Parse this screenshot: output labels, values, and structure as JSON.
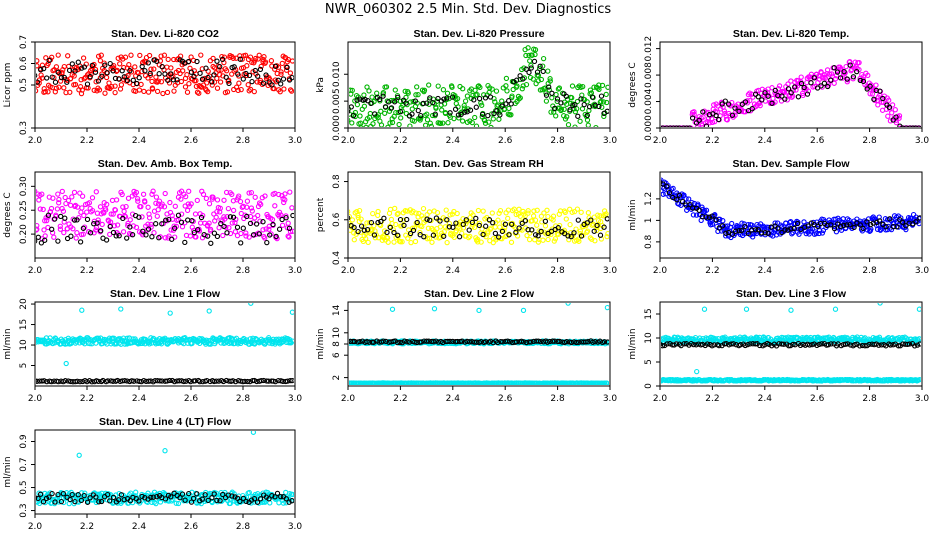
{
  "page_title": "NWR_060302  2.5 Min. Std. Dev. Diagnostics",
  "chart_data": [
    {
      "type": "scatter",
      "title": "Stan. Dev. Li-820 CO2",
      "ylabel": "Licor ppm",
      "xlim": [
        2.0,
        3.0
      ],
      "ylim": [
        0.3,
        0.7
      ],
      "xticks": [
        2.0,
        2.2,
        2.4,
        2.6,
        2.8,
        3.0
      ],
      "yticks": [
        0.3,
        0.5,
        0.6,
        0.7
      ],
      "series": [
        {
          "color": "#ff0000",
          "pattern": "band",
          "base": 0.55,
          "spread": 0.09,
          "n": 330,
          "seed": 11
        },
        {
          "color": "#000000",
          "pattern": "band",
          "base": 0.56,
          "spread": 0.06,
          "n": 90,
          "seed": 12
        }
      ]
    },
    {
      "type": "scatter",
      "title": "Stan. Dev. Li-820 Pressure",
      "ylabel": "kPa",
      "xlim": [
        2.0,
        3.0
      ],
      "ylim": [
        0.0,
        0.016
      ],
      "xticks": [
        2.0,
        2.2,
        2.4,
        2.6,
        2.8,
        3.0
      ],
      "yticks": [
        0.0,
        0.005,
        0.01
      ],
      "yticklabels": [
        "0.000",
        "0.005",
        "0.010"
      ],
      "series": [
        {
          "color": "#00b400",
          "pattern": "pressure",
          "base": 0.004,
          "spread": 0.004,
          "n": 330,
          "seed": 21
        },
        {
          "color": "#000000",
          "pattern": "pressure",
          "base": 0.004,
          "spread": 0.002,
          "n": 90,
          "seed": 22
        }
      ]
    },
    {
      "type": "scatter",
      "title": "Stan. Dev. Li-820 Temp.",
      "ylabel": "degrees C",
      "xlim": [
        2.0,
        3.0
      ],
      "ylim": [
        0.0,
        0.013
      ],
      "xticks": [
        2.0,
        2.2,
        2.4,
        2.6,
        2.8,
        3.0
      ],
      "yticks": [
        0.0,
        0.004,
        0.008,
        0.012
      ],
      "yticklabels": [
        "0.000",
        "0.004",
        "0.008",
        "0.012"
      ],
      "series": [
        {
          "color": "#ff00ff",
          "pattern": "temp",
          "base": 0.0,
          "spread": 0.0,
          "n": 300,
          "seed": 31
        },
        {
          "color": "#000000",
          "pattern": "temp",
          "base": 0.0,
          "spread": 0.0,
          "n": 80,
          "seed": 32
        }
      ]
    },
    {
      "type": "scatter",
      "title": "Stan. Dev. Amb. Box Temp.",
      "ylabel": "degrees C",
      "xlim": [
        2.0,
        3.0
      ],
      "ylim": [
        0.15,
        0.33
      ],
      "xticks": [
        2.0,
        2.2,
        2.4,
        2.6,
        2.8,
        3.0
      ],
      "yticks": [
        0.2,
        0.25,
        0.3
      ],
      "yticklabels": [
        "0.20",
        "0.25",
        "0.30"
      ],
      "series": [
        {
          "color": "#ff00ff",
          "pattern": "band",
          "base": 0.24,
          "spread": 0.05,
          "n": 330,
          "seed": 41
        },
        {
          "color": "#000000",
          "pattern": "band",
          "base": 0.21,
          "spread": 0.03,
          "n": 80,
          "seed": 42
        }
      ]
    },
    {
      "type": "scatter",
      "title": "Stan. Dev. Gas Stream RH",
      "ylabel": "percent",
      "xlim": [
        2.0,
        3.0
      ],
      "ylim": [
        0.4,
        0.85
      ],
      "xticks": [
        2.0,
        2.2,
        2.4,
        2.6,
        2.8,
        3.0
      ],
      "yticks": [
        0.4,
        0.6,
        0.8
      ],
      "series": [
        {
          "color": "#ffff00",
          "pattern": "band",
          "base": 0.57,
          "spread": 0.09,
          "n": 330,
          "seed": 51
        },
        {
          "color": "#000000",
          "pattern": "band",
          "base": 0.56,
          "spread": 0.05,
          "n": 80,
          "seed": 52
        }
      ]
    },
    {
      "type": "scatter",
      "title": "Stan. Dev. Sample Flow",
      "ylabel": "ml/min",
      "xlim": [
        2.0,
        3.0
      ],
      "ylim": [
        0.65,
        1.45
      ],
      "xticks": [
        2.0,
        2.2,
        2.4,
        2.6,
        2.8,
        3.0
      ],
      "yticks": [
        0.8,
        1.0,
        1.2
      ],
      "series": [
        {
          "color": "#0000ff",
          "pattern": "flow",
          "base": 0.9,
          "spread": 0.07,
          "n": 330,
          "seed": 61
        },
        {
          "color": "#000000",
          "pattern": "flow",
          "base": 0.9,
          "spread": 0.04,
          "n": 80,
          "seed": 62
        }
      ]
    },
    {
      "type": "scatter",
      "title": "Stan. Dev. Line 1 Flow",
      "ylabel": "ml/min",
      "xlim": [
        2.0,
        3.0
      ],
      "ylim": [
        0,
        20.5
      ],
      "xticks": [
        2.0,
        2.2,
        2.4,
        2.6,
        2.8,
        3.0
      ],
      "yticks": [
        5,
        10,
        15,
        20
      ],
      "series": [
        {
          "color": "#00e5ee",
          "pattern": "band",
          "base": 11.0,
          "spread": 0.8,
          "n": 330,
          "seed": 71
        },
        {
          "color": "#000000",
          "pattern": "band",
          "base": 1.2,
          "spread": 0.15,
          "n": 110,
          "seed": 72
        }
      ],
      "outliers": [
        {
          "x": 2.18,
          "y": 18.5
        },
        {
          "x": 2.33,
          "y": 18.8
        },
        {
          "x": 2.52,
          "y": 17.8
        },
        {
          "x": 2.67,
          "y": 18.3
        },
        {
          "x": 2.83,
          "y": 20.2
        },
        {
          "x": 2.99,
          "y": 18.0
        },
        {
          "x": 2.12,
          "y": 5.5
        }
      ]
    },
    {
      "type": "scatter",
      "title": "Stan. Dev. Line 2 Flow",
      "ylabel": "ml/min",
      "xlim": [
        2.0,
        3.0
      ],
      "ylim": [
        0.5,
        15.5
      ],
      "xticks": [
        2.0,
        2.2,
        2.4,
        2.6,
        2.8,
        3.0
      ],
      "yticks": [
        2,
        6,
        8,
        10,
        14
      ],
      "series": [
        {
          "color": "#00e5ee",
          "pattern": "band",
          "base": 8.3,
          "spread": 0.25,
          "n": 300,
          "seed": 81
        },
        {
          "color": "#00e5ee",
          "pattern": "band",
          "base": 1.0,
          "spread": 0.05,
          "n": 300,
          "seed": 82
        },
        {
          "color": "#000000",
          "pattern": "band",
          "base": 8.4,
          "spread": 0.15,
          "n": 110,
          "seed": 83
        }
      ],
      "outliers": [
        {
          "x": 2.17,
          "y": 14.2
        },
        {
          "x": 2.33,
          "y": 14.3
        },
        {
          "x": 2.5,
          "y": 14.0
        },
        {
          "x": 2.67,
          "y": 14.0
        },
        {
          "x": 2.84,
          "y": 15.3
        },
        {
          "x": 2.99,
          "y": 14.5
        }
      ]
    },
    {
      "type": "scatter",
      "title": "Stan. Dev. Line 3 Flow",
      "ylabel": "ml/min",
      "xlim": [
        2.0,
        3.0
      ],
      "ylim": [
        0,
        17.5
      ],
      "xticks": [
        2.0,
        2.2,
        2.4,
        2.6,
        2.8,
        3.0
      ],
      "yticks": [
        0,
        5,
        10,
        15
      ],
      "series": [
        {
          "color": "#00e5ee",
          "pattern": "band",
          "base": 9.6,
          "spread": 0.6,
          "n": 330,
          "seed": 91
        },
        {
          "color": "#00e5ee",
          "pattern": "band",
          "base": 1.2,
          "spread": 0.15,
          "n": 300,
          "seed": 92
        },
        {
          "color": "#000000",
          "pattern": "band",
          "base": 8.6,
          "spread": 0.25,
          "n": 110,
          "seed": 93
        }
      ],
      "outliers": [
        {
          "x": 2.17,
          "y": 16.0
        },
        {
          "x": 2.33,
          "y": 16.0
        },
        {
          "x": 2.5,
          "y": 15.8
        },
        {
          "x": 2.67,
          "y": 16.0
        },
        {
          "x": 2.84,
          "y": 17.3
        },
        {
          "x": 2.99,
          "y": 16.0
        },
        {
          "x": 2.14,
          "y": 3.0
        }
      ]
    },
    {
      "type": "scatter",
      "title": "Stan. Dev. Line 4 (LT) Flow",
      "ylabel": "ml/min",
      "xlim": [
        2.0,
        3.0
      ],
      "ylim": [
        0.27,
        1.0
      ],
      "xticks": [
        2.0,
        2.2,
        2.4,
        2.6,
        2.8,
        3.0
      ],
      "yticks": [
        0.3,
        0.5,
        0.7,
        0.9
      ],
      "series": [
        {
          "color": "#00e5ee",
          "pattern": "band",
          "base": 0.41,
          "spread": 0.05,
          "n": 330,
          "seed": 101
        },
        {
          "color": "#000000",
          "pattern": "band",
          "base": 0.41,
          "spread": 0.04,
          "n": 90,
          "seed": 102
        }
      ],
      "outliers": [
        {
          "x": 2.17,
          "y": 0.78
        },
        {
          "x": 2.5,
          "y": 0.82
        },
        {
          "x": 2.84,
          "y": 0.98
        }
      ]
    }
  ]
}
